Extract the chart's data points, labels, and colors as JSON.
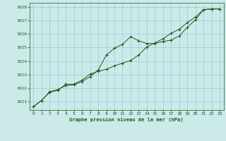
{
  "bg_color": "#cceaea",
  "line_color": "#1a5c1a",
  "grid_color": "#99cccc",
  "xlabel": "Graphe pression niveau de la mer (hPa)",
  "xlim": [
    -0.5,
    23.5
  ],
  "ylim": [
    1020.4,
    1028.3
  ],
  "yticks": [
    1021,
    1022,
    1023,
    1024,
    1025,
    1026,
    1027,
    1028
  ],
  "xticks": [
    0,
    1,
    2,
    3,
    4,
    5,
    6,
    7,
    8,
    9,
    10,
    11,
    12,
    13,
    14,
    15,
    16,
    17,
    18,
    19,
    20,
    21,
    22,
    23
  ],
  "series1_x": [
    0,
    1,
    2,
    3,
    4,
    5,
    6,
    7,
    8,
    9,
    10,
    11,
    12,
    13,
    14,
    15,
    16,
    17,
    18,
    19,
    20,
    21,
    22,
    23
  ],
  "series1_y": [
    1020.65,
    1021.1,
    1021.75,
    1021.9,
    1022.2,
    1022.25,
    1022.5,
    1022.85,
    1023.35,
    1024.45,
    1024.95,
    1025.25,
    1025.8,
    1025.5,
    1025.3,
    1025.3,
    1025.45,
    1025.55,
    1025.85,
    1026.5,
    1027.05,
    1027.8,
    1027.85,
    1027.85
  ],
  "series2_x": [
    0,
    1,
    2,
    3,
    4,
    5,
    6,
    7,
    8,
    9,
    10,
    11,
    12,
    13,
    14,
    15,
    16,
    17,
    18,
    19,
    20,
    21,
    22,
    23
  ],
  "series2_y": [
    1020.65,
    1021.1,
    1021.7,
    1021.85,
    1022.3,
    1022.3,
    1022.6,
    1023.05,
    1023.25,
    1023.4,
    1023.65,
    1023.85,
    1024.05,
    1024.45,
    1025.05,
    1025.35,
    1025.65,
    1026.05,
    1026.35,
    1026.85,
    1027.25,
    1027.8,
    1027.85,
    1027.85
  ]
}
